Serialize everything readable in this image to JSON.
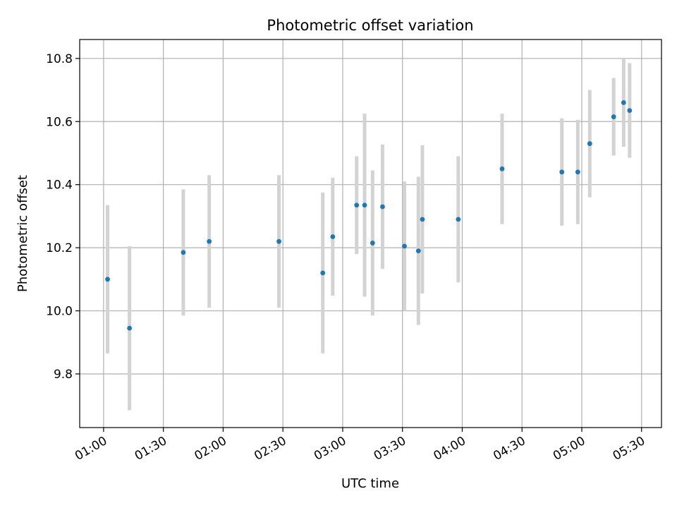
{
  "chart_data": {
    "type": "scatter",
    "title": "Photometric offset variation",
    "xlabel": "UTC time",
    "ylabel": "Photometric offset",
    "x_unit": "UTC time (HH:MM)",
    "xlim": [
      "00:48",
      "05:40"
    ],
    "ylim": [
      9.63,
      10.86
    ],
    "x_ticks": [
      "01:00",
      "01:30",
      "02:00",
      "02:30",
      "03:00",
      "03:30",
      "04:00",
      "04:30",
      "05:00",
      "05:30"
    ],
    "y_ticks": [
      9.8,
      10.0,
      10.2,
      10.4,
      10.6,
      10.8
    ],
    "y_tick_labels": [
      "9.8",
      "10.0",
      "10.2",
      "10.4",
      "10.6",
      "10.8"
    ],
    "grid": true,
    "marker_color": "#1f77b4",
    "errorbar_color": "#d3d3d3",
    "points": [
      {
        "t": "01:02",
        "y": 10.1,
        "err": 0.235
      },
      {
        "t": "01:13",
        "y": 9.945,
        "err": 0.26
      },
      {
        "t": "01:40",
        "y": 10.185,
        "err": 0.2
      },
      {
        "t": "01:53",
        "y": 10.22,
        "err": 0.21
      },
      {
        "t": "02:28",
        "y": 10.22,
        "err": 0.21
      },
      {
        "t": "02:50",
        "y": 10.12,
        "err": 0.255
      },
      {
        "t": "02:55",
        "y": 10.235,
        "err": 0.187
      },
      {
        "t": "03:07",
        "y": 10.335,
        "err": 0.155
      },
      {
        "t": "03:11",
        "y": 10.335,
        "err": 0.29
      },
      {
        "t": "03:15",
        "y": 10.215,
        "err": 0.23
      },
      {
        "t": "03:20",
        "y": 10.33,
        "err": 0.197
      },
      {
        "t": "03:31",
        "y": 10.205,
        "err": 0.205
      },
      {
        "t": "03:38",
        "y": 10.19,
        "err": 0.235
      },
      {
        "t": "03:40",
        "y": 10.29,
        "err": 0.235
      },
      {
        "t": "03:58",
        "y": 10.29,
        "err": 0.2
      },
      {
        "t": "04:20",
        "y": 10.45,
        "err": 0.175
      },
      {
        "t": "04:50",
        "y": 10.44,
        "err": 0.17
      },
      {
        "t": "04:58",
        "y": 10.44,
        "err": 0.165
      },
      {
        "t": "05:04",
        "y": 10.53,
        "err": 0.17
      },
      {
        "t": "05:16",
        "y": 10.615,
        "err": 0.123
      },
      {
        "t": "05:21",
        "y": 10.66,
        "err": 0.14
      },
      {
        "t": "05:24",
        "y": 10.635,
        "err": 0.15
      }
    ]
  }
}
